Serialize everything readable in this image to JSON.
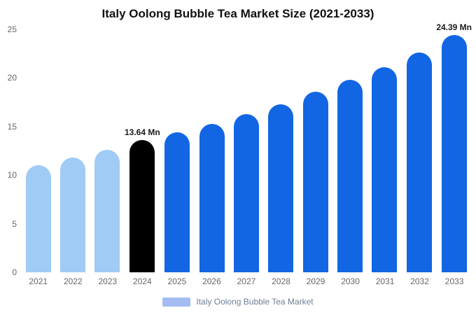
{
  "chart_data": {
    "type": "bar",
    "title": "Italy Oolong Bubble Tea Market Size (2021-2033)",
    "categories": [
      "2021",
      "2022",
      "2023",
      "2024",
      "2025",
      "2026",
      "2027",
      "2028",
      "2029",
      "2030",
      "2031",
      "2032",
      "2033"
    ],
    "values": [
      11.0,
      11.8,
      12.6,
      13.64,
      14.4,
      15.3,
      16.3,
      17.3,
      18.6,
      19.8,
      21.1,
      22.6,
      24.39
    ],
    "data_labels": [
      "",
      "",
      "",
      "13.64 Mn",
      "",
      "",
      "",
      "",
      "",
      "",
      "",
      "",
      "24.39 Mn"
    ],
    "bar_colors": [
      "#9fcbf5",
      "#9fcbf5",
      "#9fcbf5",
      "#000000",
      "#1266e3",
      "#1266e3",
      "#1266e3",
      "#1266e3",
      "#1266e3",
      "#1266e3",
      "#1266e3",
      "#1266e3",
      "#1266e3"
    ],
    "xlabel": "",
    "ylabel": "",
    "ylim": [
      0,
      25
    ],
    "yticks": [
      0,
      5,
      10,
      15,
      20,
      25
    ],
    "grid": false,
    "legend": {
      "label": "Italy Oolong Bubble Tea Market",
      "swatch_color": "#a3bdf2",
      "position": "bottom"
    },
    "colors": {
      "historical": "#9fcbf5",
      "base_year": "#000000",
      "forecast": "#1266e3"
    }
  }
}
